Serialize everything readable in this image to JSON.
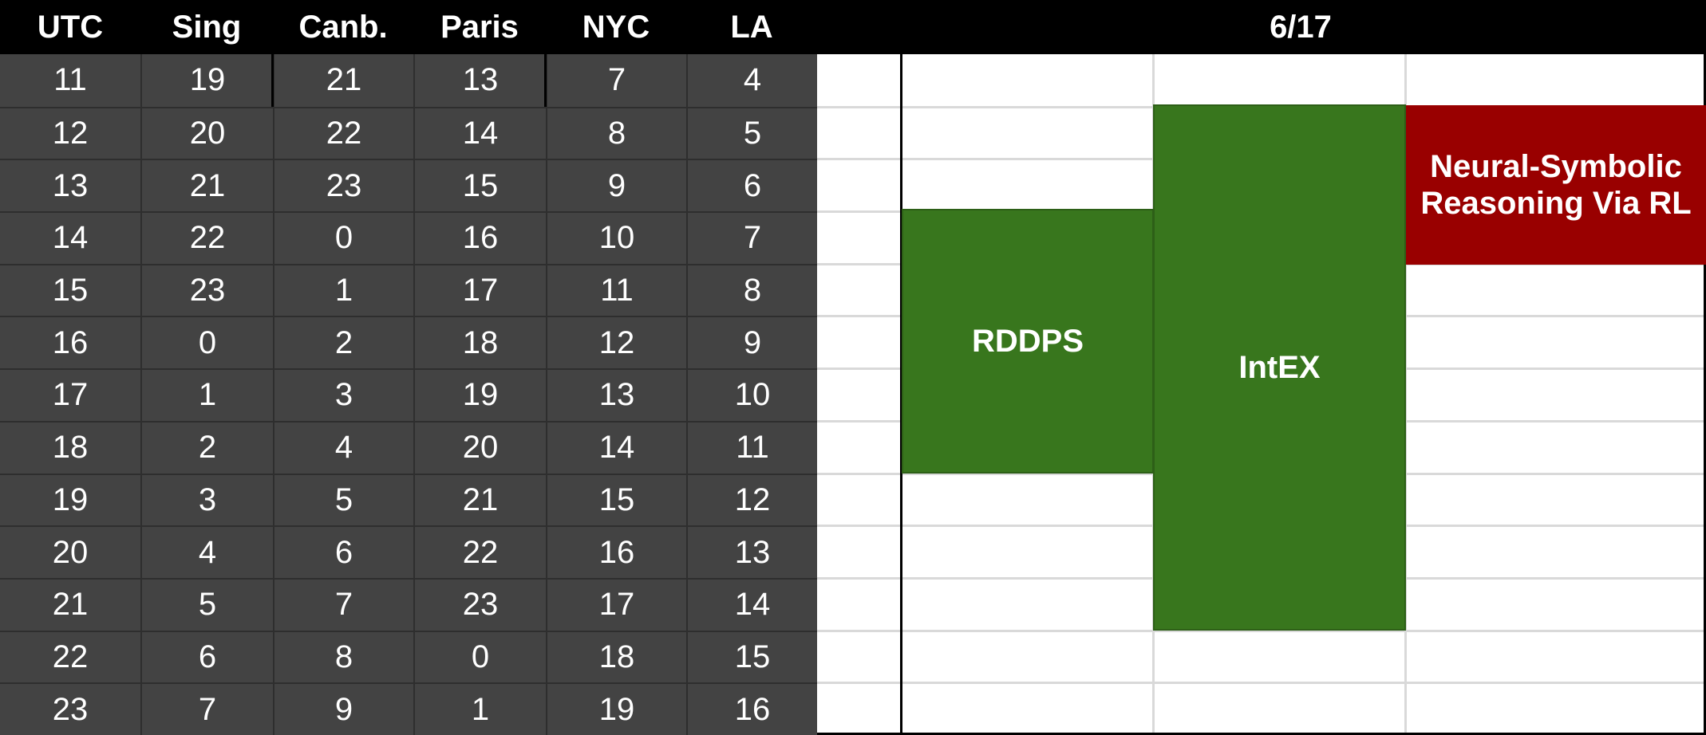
{
  "headers": {
    "timezones": [
      "UTC",
      "Sing",
      "Canb.",
      "Paris",
      "NYC",
      "LA"
    ],
    "date": "6/17"
  },
  "rows": [
    [
      "11",
      "19",
      "21",
      "13",
      "7",
      "4"
    ],
    [
      "12",
      "20",
      "22",
      "14",
      "8",
      "5"
    ],
    [
      "13",
      "21",
      "23",
      "15",
      "9",
      "6"
    ],
    [
      "14",
      "22",
      "0",
      "16",
      "10",
      "7"
    ],
    [
      "15",
      "23",
      "1",
      "17",
      "11",
      "8"
    ],
    [
      "16",
      "0",
      "2",
      "18",
      "12",
      "9"
    ],
    [
      "17",
      "1",
      "3",
      "19",
      "13",
      "10"
    ],
    [
      "18",
      "2",
      "4",
      "20",
      "14",
      "11"
    ],
    [
      "19",
      "3",
      "5",
      "21",
      "15",
      "12"
    ],
    [
      "20",
      "4",
      "6",
      "22",
      "16",
      "13"
    ],
    [
      "21",
      "5",
      "7",
      "23",
      "17",
      "14"
    ],
    [
      "22",
      "6",
      "8",
      "0",
      "18",
      "15"
    ],
    [
      "23",
      "7",
      "9",
      "1",
      "19",
      "16"
    ]
  ],
  "events": [
    {
      "title": "RDDPS",
      "color": "#38761d"
    },
    {
      "title": "IntEX",
      "color": "#38761d"
    },
    {
      "title": "Neural-Symbolic Reasoning Via RL",
      "color": "#990000"
    }
  ],
  "colors": {
    "table_bg": "#434343",
    "header_bg": "#000000",
    "grid_line": "#d9d9d9",
    "session_green": "#38761d",
    "session_red": "#990000"
  }
}
